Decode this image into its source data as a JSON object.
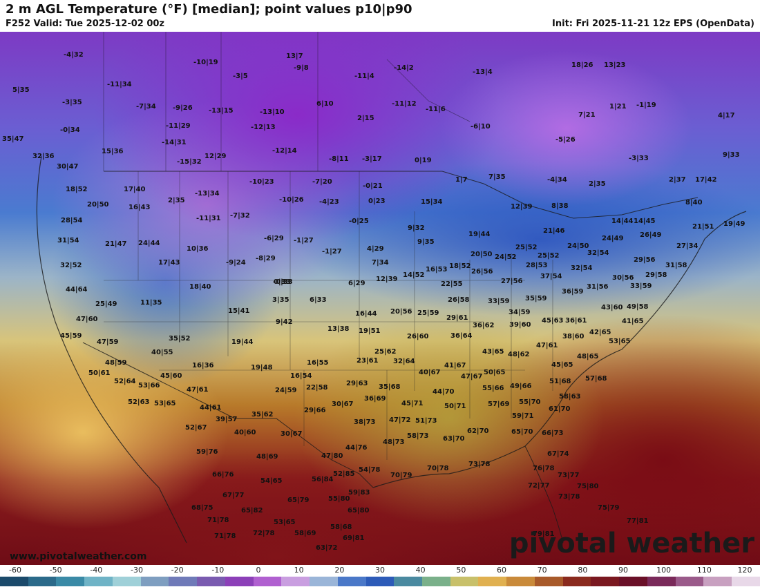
{
  "title": "2 m AGL Temperature (°F) [median]; point values p10|p90",
  "valid": "F252 Valid: Tue 2025-12-02 00z",
  "init": "Init: Fri 2025-11-21 12z EPS (OpenData)",
  "watermark_url": "www.pivotalweather.com",
  "watermark_brand": "pivotal weather",
  "colorbar": {
    "ticks": [
      "-60",
      "-50",
      "-40",
      "-30",
      "-20",
      "-10",
      "0",
      "10",
      "20",
      "30",
      "40",
      "50",
      "60",
      "70",
      "80",
      "90",
      "100",
      "110",
      "120"
    ],
    "colors": [
      "#1b4a6b",
      "#2b6a8a",
      "#3a8aa6",
      "#6fb3c6",
      "#9fd0d8",
      "#7e9ec0",
      "#6f7ab8",
      "#7a5bb0",
      "#8c40b8",
      "#b060d0",
      "#c99ee0",
      "#9ab5d8",
      "#4a78c8",
      "#2d5bb8",
      "#4a8aa0",
      "#7ab08a",
      "#c8c06a",
      "#e0b050",
      "#c98a3a",
      "#a85a2a",
      "#8a2a1e",
      "#7a1820",
      "#6a1028",
      "#7a2a5a",
      "#9a5a8a",
      "#c8a0c0",
      "#e8d8e8"
    ]
  },
  "points": [
    [
      "-4|32",
      92,
      75
    ],
    [
      "-10|19",
      280,
      86
    ],
    [
      "13|7",
      414,
      77
    ],
    [
      "-9|8",
      425,
      94
    ],
    [
      "-3|5",
      337,
      106
    ],
    [
      "-14|2",
      570,
      94
    ],
    [
      "-13|4",
      684,
      100
    ],
    [
      "18|26",
      827,
      90
    ],
    [
      "13|23",
      874,
      90
    ],
    [
      "5|35",
      18,
      126
    ],
    [
      "-11|34",
      155,
      118
    ],
    [
      "-11|4",
      513,
      106
    ],
    [
      "-3|35",
      90,
      144
    ],
    [
      "-7|34",
      197,
      150
    ],
    [
      "-9|26",
      250,
      152
    ],
    [
      "-13|15",
      302,
      156
    ],
    [
      "-13|10",
      376,
      158
    ],
    [
      "6|10",
      458,
      146
    ],
    [
      "-11|12",
      567,
      146
    ],
    [
      "-11|6",
      616,
      154
    ],
    [
      "7|21",
      837,
      162
    ],
    [
      "1|21",
      882,
      150
    ],
    [
      "-1|19",
      921,
      148
    ],
    [
      "4|17",
      1039,
      163
    ],
    [
      "-0|34",
      87,
      184
    ],
    [
      "2|15",
      517,
      167
    ],
    [
      "-11|29",
      240,
      178
    ],
    [
      "-12|13",
      363,
      180
    ],
    [
      "-6|10",
      681,
      179
    ],
    [
      "-14|31",
      234,
      202
    ],
    [
      "-5|26",
      804,
      198
    ],
    [
      "35|47",
      3,
      197
    ],
    [
      "15|36",
      147,
      215
    ],
    [
      "-12|14",
      394,
      214
    ],
    [
      "12|29",
      296,
      222
    ],
    [
      "9|33",
      1046,
      220
    ],
    [
      "32|36",
      47,
      222
    ],
    [
      "-15|32",
      256,
      230
    ],
    [
      "-8|11",
      476,
      226
    ],
    [
      "-3|17",
      524,
      226
    ],
    [
      "0|19",
      600,
      228
    ],
    [
      "-3|33",
      910,
      225
    ],
    [
      "30|47",
      82,
      237
    ],
    [
      "17|40",
      179,
      270
    ],
    [
      "2|35",
      243,
      286
    ],
    [
      "-10|23",
      361,
      259
    ],
    [
      "-7|20",
      452,
      259
    ],
    [
      "-0|21",
      525,
      265
    ],
    [
      "1|7",
      659,
      256
    ],
    [
      "7|35",
      707,
      252
    ],
    [
      "-4|34",
      792,
      256
    ],
    [
      "2|35",
      852,
      262
    ],
    [
      "2|37",
      968,
      256
    ],
    [
      "17|42",
      1006,
      256
    ],
    [
      "18|52",
      95,
      270
    ],
    [
      "-13|34",
      282,
      276
    ],
    [
      "-10|26",
      404,
      285
    ],
    [
      "-4|23",
      462,
      288
    ],
    [
      "0|23",
      533,
      287
    ],
    [
      "15|34",
      609,
      288
    ],
    [
      "12|39",
      739,
      295
    ],
    [
      "8|38",
      798,
      294
    ],
    [
      "8|40",
      992,
      289
    ],
    [
      "20|50",
      126,
      292
    ],
    [
      "16|43",
      186,
      296
    ],
    [
      "-7|32",
      333,
      308
    ],
    [
      "-11|31",
      284,
      312
    ],
    [
      "-0|25",
      505,
      316
    ],
    [
      "14|44",
      885,
      316
    ],
    [
      "14|45",
      917,
      316
    ],
    [
      "28|54",
      88,
      315
    ],
    [
      "21|51",
      1002,
      324
    ],
    [
      "19|49",
      1047,
      320
    ],
    [
      "9|32",
      590,
      326
    ],
    [
      "21|46",
      786,
      330
    ],
    [
      "19|44",
      678,
      335
    ],
    [
      "24|49",
      871,
      341
    ],
    [
      "26|49",
      926,
      336
    ],
    [
      "31|54",
      83,
      344
    ],
    [
      "21|47",
      152,
      349
    ],
    [
      "24|44",
      200,
      348
    ],
    [
      "10|36",
      270,
      356
    ],
    [
      "-6|29",
      382,
      341
    ],
    [
      "-1|27",
      425,
      344
    ],
    [
      "9|35",
      604,
      346
    ],
    [
      "25|52",
      746,
      354
    ],
    [
      "24|50",
      821,
      352
    ],
    [
      "32|54",
      850,
      362
    ],
    [
      "27|34",
      979,
      352
    ],
    [
      "17|43",
      229,
      376
    ],
    [
      "-9|24",
      327,
      376
    ],
    [
      "-8|29",
      370,
      370
    ],
    [
      "-1|27",
      466,
      360
    ],
    [
      "4|29",
      531,
      356
    ],
    [
      "20|50",
      681,
      364
    ],
    [
      "24|52",
      716,
      368
    ],
    [
      "25|52",
      778,
      366
    ],
    [
      "29|56",
      917,
      372
    ],
    [
      "7|34",
      538,
      376
    ],
    [
      "32|52",
      87,
      380
    ],
    [
      "28|53",
      761,
      380
    ],
    [
      "32|54",
      826,
      384
    ],
    [
      "31|58",
      963,
      380
    ],
    [
      "16|53",
      616,
      386
    ],
    [
      "18|52",
      650,
      381
    ],
    [
      "26|56",
      682,
      389
    ],
    [
      "14|52",
      583,
      394
    ],
    [
      "12|39",
      544,
      400
    ],
    [
      "37|54",
      782,
      396
    ],
    [
      "29|58",
      934,
      394
    ],
    [
      "0|33",
      396,
      404
    ],
    [
      "-0|33",
      395,
      404
    ],
    [
      "30|56",
      886,
      398
    ],
    [
      "6|29",
      504,
      406
    ],
    [
      "22|55",
      638,
      407
    ],
    [
      "27|56",
      725,
      403
    ],
    [
      "31|56",
      849,
      411
    ],
    [
      "33|59",
      912,
      410
    ],
    [
      "44|64",
      95,
      415
    ],
    [
      "18|40",
      274,
      411
    ],
    [
      "36|59",
      813,
      418
    ],
    [
      "26|58",
      648,
      430
    ],
    [
      "33|59",
      706,
      432
    ],
    [
      "35|59",
      760,
      428
    ],
    [
      "3|35",
      394,
      430
    ],
    [
      "6|33",
      448,
      430
    ],
    [
      "25|49",
      138,
      436
    ],
    [
      "11|35",
      203,
      434
    ],
    [
      "43|60",
      870,
      441
    ],
    [
      "49|58",
      907,
      440
    ],
    [
      "15|41",
      330,
      446
    ],
    [
      "25|59",
      604,
      449
    ],
    [
      "29|61",
      646,
      456
    ],
    [
      "34|59",
      736,
      448
    ],
    [
      "16|44",
      514,
      450
    ],
    [
      "20|56",
      565,
      447
    ],
    [
      "47|60",
      110,
      458
    ],
    [
      "9|42",
      399,
      462
    ],
    [
      "36|61",
      818,
      460
    ],
    [
      "45|63",
      784,
      460
    ],
    [
      "41|65",
      900,
      461
    ],
    [
      "36|62",
      684,
      467
    ],
    [
      "39|60",
      737,
      466
    ],
    [
      "13|38",
      474,
      472
    ],
    [
      "19|51",
      519,
      475
    ],
    [
      "45|59",
      87,
      482
    ],
    [
      "42|65",
      853,
      477
    ],
    [
      "26|60",
      589,
      483
    ],
    [
      "36|64",
      652,
      482
    ],
    [
      "35|52",
      244,
      486
    ],
    [
      "38|60",
      814,
      483
    ],
    [
      "19|44",
      335,
      491
    ],
    [
      "53|65",
      881,
      490
    ],
    [
      "47|61",
      776,
      496
    ],
    [
      "47|59",
      140,
      491
    ],
    [
      "40|55",
      219,
      506
    ],
    [
      "25|62",
      542,
      505
    ],
    [
      "43|65",
      698,
      505
    ],
    [
      "48|62",
      735,
      509
    ],
    [
      "48|65",
      835,
      512
    ],
    [
      "48|59",
      152,
      521
    ],
    [
      "23|61",
      516,
      518
    ],
    [
      "32|64",
      569,
      519
    ],
    [
      "16|55",
      444,
      521
    ],
    [
      "16|36",
      278,
      525
    ],
    [
      "19|48",
      363,
      528
    ],
    [
      "41|67",
      643,
      525
    ],
    [
      "45|65",
      798,
      524
    ],
    [
      "50|61",
      128,
      536
    ],
    [
      "40|67",
      606,
      535
    ],
    [
      "47|67",
      667,
      541
    ],
    [
      "50|65",
      700,
      535
    ],
    [
      "45|60",
      232,
      540
    ],
    [
      "16|54",
      420,
      540
    ],
    [
      "57|68",
      847,
      544
    ],
    [
      "51|68",
      795,
      548
    ],
    [
      "52|64",
      165,
      548
    ],
    [
      "29|63",
      501,
      551
    ],
    [
      "35|68",
      548,
      556
    ],
    [
      "53|66",
      200,
      554
    ],
    [
      "22|58",
      443,
      557
    ],
    [
      "55|66",
      698,
      558
    ],
    [
      "49|66",
      738,
      555
    ],
    [
      "44|70",
      626,
      563
    ],
    [
      "47|61",
      270,
      560
    ],
    [
      "24|59",
      398,
      561
    ],
    [
      "36|69",
      527,
      573
    ],
    [
      "58|63",
      809,
      570
    ],
    [
      "52|63",
      185,
      578
    ],
    [
      "53|65",
      223,
      580
    ],
    [
      "45|71",
      581,
      580
    ],
    [
      "57|69",
      706,
      581
    ],
    [
      "55|70",
      751,
      578
    ],
    [
      "30|67",
      480,
      581
    ],
    [
      "50|71",
      643,
      584
    ],
    [
      "44|61",
      289,
      586
    ],
    [
      "29|66",
      440,
      590
    ],
    [
      "61|70",
      794,
      588
    ],
    [
      "39|57",
      312,
      603
    ],
    [
      "35|62",
      364,
      596
    ],
    [
      "59|71",
      741,
      598
    ],
    [
      "38|73",
      512,
      607
    ],
    [
      "47|72",
      563,
      604
    ],
    [
      "51|73",
      601,
      605
    ],
    [
      "52|67",
      268,
      615
    ],
    [
      "40|60",
      339,
      622
    ],
    [
      "30|67",
      406,
      624
    ],
    [
      "62|70",
      676,
      620
    ],
    [
      "65|70",
      740,
      621
    ],
    [
      "66|73",
      784,
      623
    ],
    [
      "58|73",
      589,
      627
    ],
    [
      "63|70",
      641,
      631
    ],
    [
      "48|73",
      554,
      636
    ],
    [
      "44|76",
      500,
      644
    ],
    [
      "59|76",
      284,
      650
    ],
    [
      "67|74",
      792,
      653
    ],
    [
      "48|69",
      371,
      657
    ],
    [
      "47|80",
      465,
      656
    ],
    [
      "70|78",
      618,
      674
    ],
    [
      "73|78",
      678,
      668
    ],
    [
      "70|79",
      565,
      684
    ],
    [
      "54|78",
      519,
      676
    ],
    [
      "52|85",
      482,
      682
    ],
    [
      "76|78",
      771,
      674
    ],
    [
      "66|76",
      307,
      683
    ],
    [
      "54|65",
      377,
      692
    ],
    [
      "56|84",
      451,
      690
    ],
    [
      "73|77",
      807,
      684
    ],
    [
      "72|77",
      764,
      699
    ],
    [
      "75|80",
      835,
      700
    ],
    [
      "67|77",
      322,
      713
    ],
    [
      "59|83",
      504,
      709
    ],
    [
      "65|79",
      416,
      720
    ],
    [
      "55|80",
      475,
      718
    ],
    [
      "73|78",
      808,
      715
    ],
    [
      "68|75",
      277,
      731
    ],
    [
      "65|82",
      349,
      735
    ],
    [
      "65|80",
      503,
      735
    ],
    [
      "75|79",
      865,
      731
    ],
    [
      "71|78",
      300,
      749
    ],
    [
      "53|65",
      396,
      752
    ],
    [
      "58|68",
      478,
      759
    ],
    [
      "77|81",
      907,
      750
    ],
    [
      "72|78",
      366,
      768
    ],
    [
      "58|69",
      426,
      768
    ],
    [
      "71|78",
      310,
      772
    ],
    [
      "69|81",
      496,
      775
    ],
    [
      "79|81",
      771,
      769
    ],
    [
      "63|72",
      457,
      789
    ]
  ]
}
